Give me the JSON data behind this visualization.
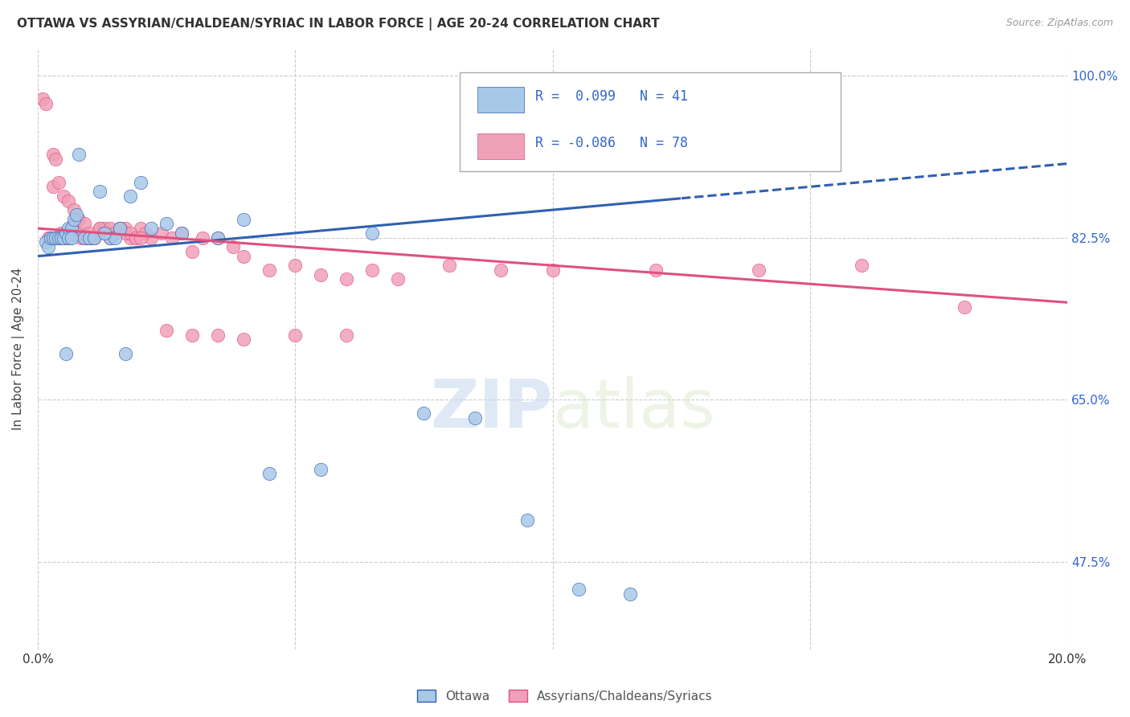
{
  "title": "OTTAWA VS ASSYRIAN/CHALDEAN/SYRIAC IN LABOR FORCE | AGE 20-24 CORRELATION CHART",
  "source": "Source: ZipAtlas.com",
  "ylabel": "In Labor Force | Age 20-24",
  "xmin": 0.0,
  "xmax": 20.0,
  "ymin": 38.0,
  "ymax": 103.0,
  "yticks": [
    47.5,
    65.0,
    82.5,
    100.0
  ],
  "ytick_labels": [
    "47.5%",
    "65.0%",
    "82.5%",
    "100.0%"
  ],
  "ottawa_R": 0.099,
  "ottawa_N": 41,
  "assyrian_R": -0.086,
  "assyrian_N": 78,
  "legend_label_ottawa": "Ottawa",
  "legend_label_assyrian": "Assyrians/Chaldeans/Syriacs",
  "blue_color": "#A8C8E8",
  "pink_color": "#F0A0B8",
  "blue_line_color": "#3060B0",
  "pink_line_color": "#E05080",
  "text_color": "#3366CC",
  "watermark_zip": "ZIP",
  "watermark_atlas": "atlas",
  "ottawa_x": [
    0.15,
    0.2,
    0.25,
    0.3,
    0.35,
    0.4,
    0.45,
    0.5,
    0.55,
    0.6,
    0.65,
    0.7,
    0.75,
    0.8,
    0.9,
    1.0,
    1.1,
    1.2,
    1.4,
    1.5,
    1.6,
    1.8,
    2.0,
    2.2,
    2.5,
    2.8,
    3.5,
    4.0,
    4.5,
    5.5,
    6.5,
    7.5,
    8.5,
    9.5,
    10.5,
    11.5,
    1.3,
    1.7,
    0.55,
    0.6,
    0.65
  ],
  "ottawa_y": [
    82.0,
    81.5,
    82.5,
    82.5,
    82.5,
    82.5,
    82.5,
    82.5,
    83.0,
    83.5,
    83.5,
    84.5,
    85.0,
    91.5,
    82.5,
    82.5,
    82.5,
    87.5,
    82.5,
    82.5,
    83.5,
    87.0,
    88.5,
    83.5,
    84.0,
    83.0,
    82.5,
    84.5,
    57.0,
    57.5,
    83.0,
    63.5,
    63.0,
    52.0,
    44.5,
    44.0,
    83.0,
    70.0,
    70.0,
    82.5,
    82.5
  ],
  "assyrian_x": [
    0.1,
    0.15,
    0.2,
    0.25,
    0.3,
    0.35,
    0.4,
    0.45,
    0.5,
    0.55,
    0.6,
    0.65,
    0.7,
    0.75,
    0.8,
    0.85,
    0.9,
    0.95,
    1.0,
    1.05,
    1.1,
    1.15,
    1.2,
    1.3,
    1.4,
    1.5,
    1.6,
    1.7,
    1.8,
    1.9,
    2.0,
    2.1,
    2.2,
    2.4,
    2.6,
    2.8,
    3.0,
    3.2,
    3.5,
    3.8,
    4.0,
    4.5,
    5.0,
    5.5,
    6.0,
    6.5,
    7.0,
    8.0,
    9.0,
    10.0,
    12.0,
    14.0,
    16.0,
    18.0,
    0.3,
    0.4,
    0.5,
    0.6,
    0.7,
    0.8,
    0.9,
    1.0,
    1.1,
    1.2,
    1.3,
    1.4,
    1.5,
    1.6,
    1.7,
    1.8,
    1.9,
    2.0,
    2.5,
    3.0,
    3.5,
    4.0,
    5.0,
    6.0
  ],
  "assyrian_y": [
    97.5,
    97.0,
    82.5,
    82.5,
    91.5,
    91.0,
    82.5,
    83.0,
    82.5,
    82.5,
    82.5,
    83.5,
    84.0,
    84.5,
    83.0,
    82.5,
    82.5,
    82.5,
    82.5,
    82.5,
    82.5,
    83.0,
    83.5,
    83.5,
    82.5,
    83.0,
    83.5,
    83.5,
    82.5,
    82.5,
    83.5,
    83.0,
    82.5,
    83.0,
    82.5,
    83.0,
    81.0,
    82.5,
    82.5,
    81.5,
    80.5,
    79.0,
    79.5,
    78.5,
    78.0,
    79.0,
    78.0,
    79.5,
    79.0,
    79.0,
    79.0,
    79.0,
    79.5,
    75.0,
    88.0,
    88.5,
    87.0,
    86.5,
    85.5,
    84.5,
    84.0,
    83.0,
    82.5,
    83.5,
    83.0,
    83.5,
    83.0,
    83.5,
    83.0,
    83.0,
    82.5,
    82.5,
    72.5,
    72.0,
    72.0,
    71.5,
    72.0,
    72.0
  ]
}
